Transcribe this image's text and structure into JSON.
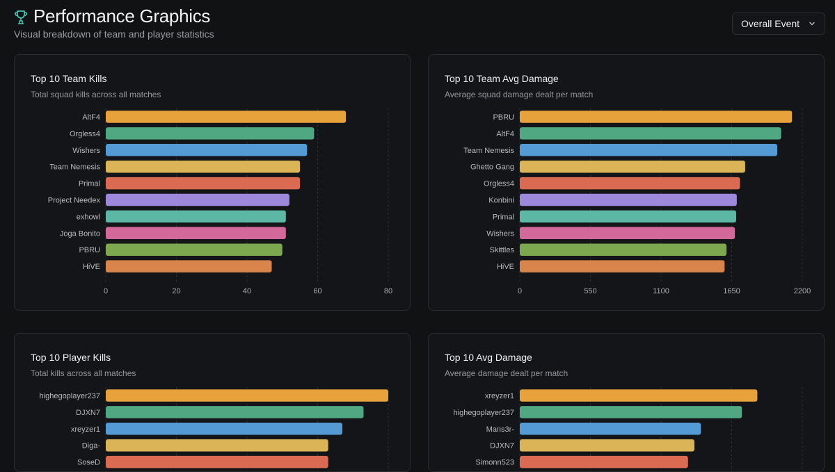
{
  "header": {
    "title": "Performance Graphics",
    "subtitle": "Visual breakdown of team and player statistics"
  },
  "filter": {
    "selected": "Overall Event"
  },
  "colors": [
    "#e8a23b",
    "#4fa882",
    "#549bd6",
    "#dbb458",
    "#da6a52",
    "#9d88dc",
    "#5cb8a4",
    "#d2699a",
    "#7ea84f",
    "#d8844a"
  ],
  "chart_data": [
    {
      "type": "bar",
      "orientation": "horizontal",
      "title": "Top 10 Team Kills",
      "subtitle": "Total squad kills across all matches",
      "categories": [
        "AltF4",
        "Orgless4",
        "Wishers",
        "Team Nemesis",
        "Primal",
        "Project Needex",
        "exhowl",
        "Joga Bonito",
        "PBRU",
        "HiVE"
      ],
      "values": [
        68,
        59,
        57,
        55,
        55,
        52,
        51,
        51,
        50,
        47
      ],
      "xlim": [
        0,
        80
      ],
      "xticks": [
        "0",
        "20",
        "40",
        "60",
        "80"
      ]
    },
    {
      "type": "bar",
      "orientation": "horizontal",
      "title": "Top 10 Team Avg Damage",
      "subtitle": "Average squad damage dealt per match",
      "categories": [
        "PBRU",
        "AltF4",
        "Team Nemesis",
        "Ghetto Gang",
        "Orgless4",
        "Konbini",
        "Primal",
        "Wishers",
        "Skittles",
        "HiVE"
      ],
      "values": [
        2120,
        2035,
        2005,
        1755,
        1715,
        1690,
        1685,
        1675,
        1610,
        1595
      ],
      "xlim": [
        0,
        2200
      ],
      "xticks": [
        "0",
        "550",
        "1100",
        "1650",
        "2200"
      ]
    },
    {
      "type": "bar",
      "orientation": "horizontal",
      "title": "Top 10 Player Kills",
      "subtitle": "Total kills across all matches",
      "categories": [
        "highegoplayer237",
        "DJXN7",
        "xreyzer1",
        "Diga-",
        "SoseD"
      ],
      "values": [
        80,
        73,
        67,
        63,
        63
      ],
      "xlim": [
        0,
        80
      ],
      "xticks": []
    },
    {
      "type": "bar",
      "orientation": "horizontal",
      "title": "Top 10 Avg Damage",
      "subtitle": "Average damage dealt per match",
      "categories": [
        "xreyzer1",
        "highegoplayer237",
        "Mans3r-",
        "DJXN7",
        "Simonn523"
      ],
      "values": [
        1850,
        1730,
        1410,
        1360,
        1310
      ],
      "xlim": [
        0,
        2200
      ],
      "xticks": []
    }
  ]
}
